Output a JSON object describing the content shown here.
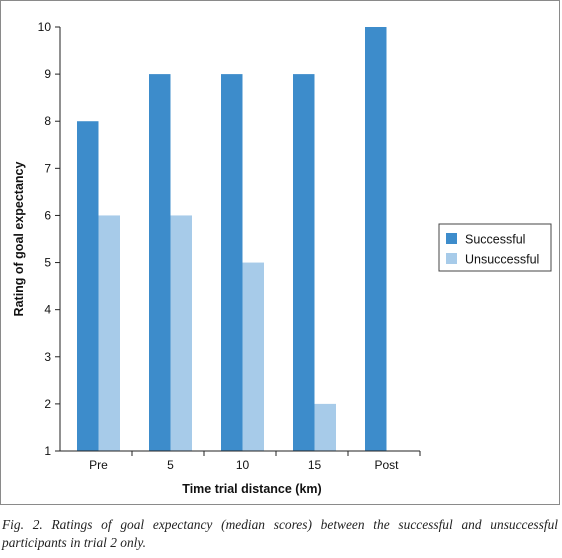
{
  "chart_data": {
    "type": "bar",
    "categories": [
      "Pre",
      "5",
      "10",
      "15",
      "Post"
    ],
    "series": [
      {
        "name": "Successful",
        "values": [
          8,
          9,
          9,
          9,
          10
        ],
        "color": "#3d8ccb"
      },
      {
        "name": "Unsuccessful",
        "values": [
          6,
          6,
          5,
          2,
          null
        ],
        "color": "#a7cbe9"
      }
    ],
    "xlabel": "Time trial distance (km)",
    "ylabel": "Rating of goal expectancy",
    "ylim": [
      1,
      10
    ],
    "yticks": [
      "1",
      "2",
      "3",
      "4",
      "5",
      "6",
      "7",
      "8",
      "9",
      "10"
    ],
    "legend_position": "right",
    "grid": false
  },
  "caption": "Fig. 2. Ratings of goal expectancy (median scores) between the successful and unsuccessful participants in trial 2 only."
}
